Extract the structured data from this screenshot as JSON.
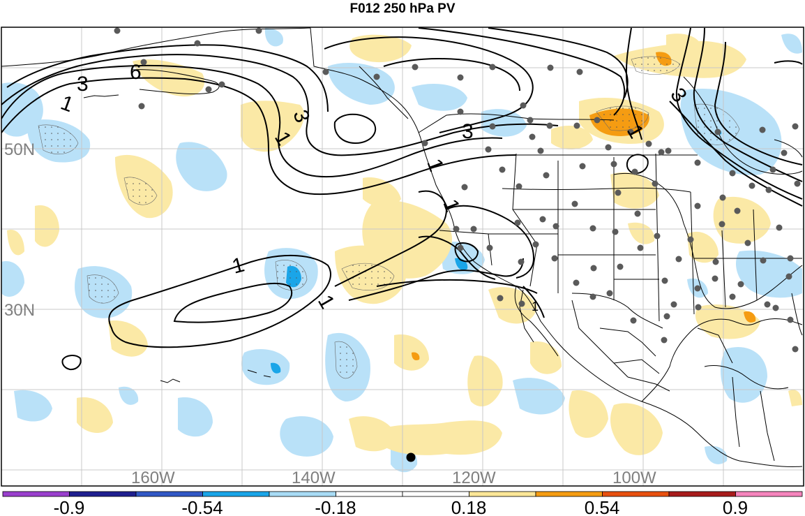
{
  "title": "F012 250 hPa PV",
  "lat_labels": [
    "50N",
    "30N"
  ],
  "lon_labels": [
    "160W",
    "140W",
    "120W",
    "100W"
  ],
  "contour_labels": [
    "6",
    "3",
    "1",
    "3",
    "1",
    "3",
    "1",
    "1",
    "1",
    "3",
    "1",
    "1",
    "1"
  ],
  "colorbar": {
    "colors": [
      "#9a3fcd",
      "#1f1f8f",
      "#3158c5",
      "#1aa5e8",
      "#a8dbf5",
      "#ffffff",
      "#ffffff",
      "#fbe697",
      "#f59c12",
      "#e8500f",
      "#a81c1c",
      "#f584bc"
    ],
    "tick_labels": [
      "-0.9",
      "-0.54",
      "-0.18",
      "0.18",
      "0.54",
      "0.9"
    ]
  },
  "colors": {
    "neg_light": "#b9e1f8",
    "neg_mid": "#1aa5e8",
    "pos_light": "#fbe9a6",
    "pos_mid": "#f59c12",
    "grid": "#c8c8c8",
    "station": "#5a5a5a"
  }
}
